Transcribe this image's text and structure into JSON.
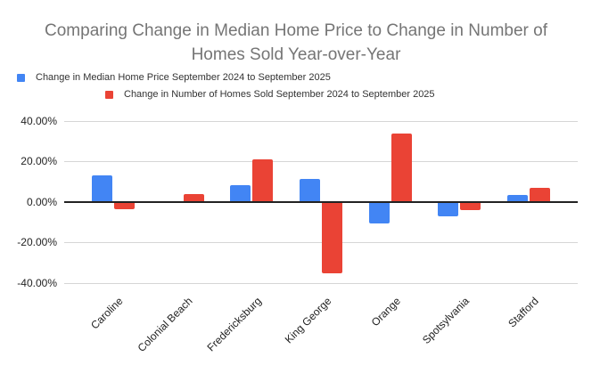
{
  "chart_data": {
    "type": "bar",
    "title": "Comparing Change in Median Home Price to Change in Number of Homes Sold Year-over-Year",
    "title_color": "#757575",
    "background_color": "#ffffff",
    "grid": true,
    "legend_position": "top",
    "value_format": "percent",
    "categories": [
      "Caroline",
      "Colonial Beach",
      "Fredericksburg",
      "King George",
      "Orange",
      "Spotsylvania",
      "Stafford"
    ],
    "series": [
      {
        "name": "Change in Median Home Price September 2024 to September 2025",
        "color": "#4285F4",
        "values": [
          13.0,
          0.0,
          8.5,
          11.5,
          -10.5,
          -7.0,
          3.5
        ]
      },
      {
        "name": "Change in Number of Homes Sold September 2024 to September 2025",
        "color": "#EA4335",
        "values": [
          -3.5,
          4.0,
          21.0,
          -35.0,
          34.0,
          -4.0,
          7.0
        ]
      }
    ],
    "ylim": [
      -40,
      40
    ],
    "xlabel": "",
    "ylabel": "",
    "y_ticks": [
      {
        "value": 40,
        "label": "40.00%"
      },
      {
        "value": 20,
        "label": "20.00%"
      },
      {
        "value": 0,
        "label": "0.00%"
      },
      {
        "value": -20,
        "label": "-20.00%"
      },
      {
        "value": -40,
        "label": "-40.00%"
      }
    ]
  }
}
